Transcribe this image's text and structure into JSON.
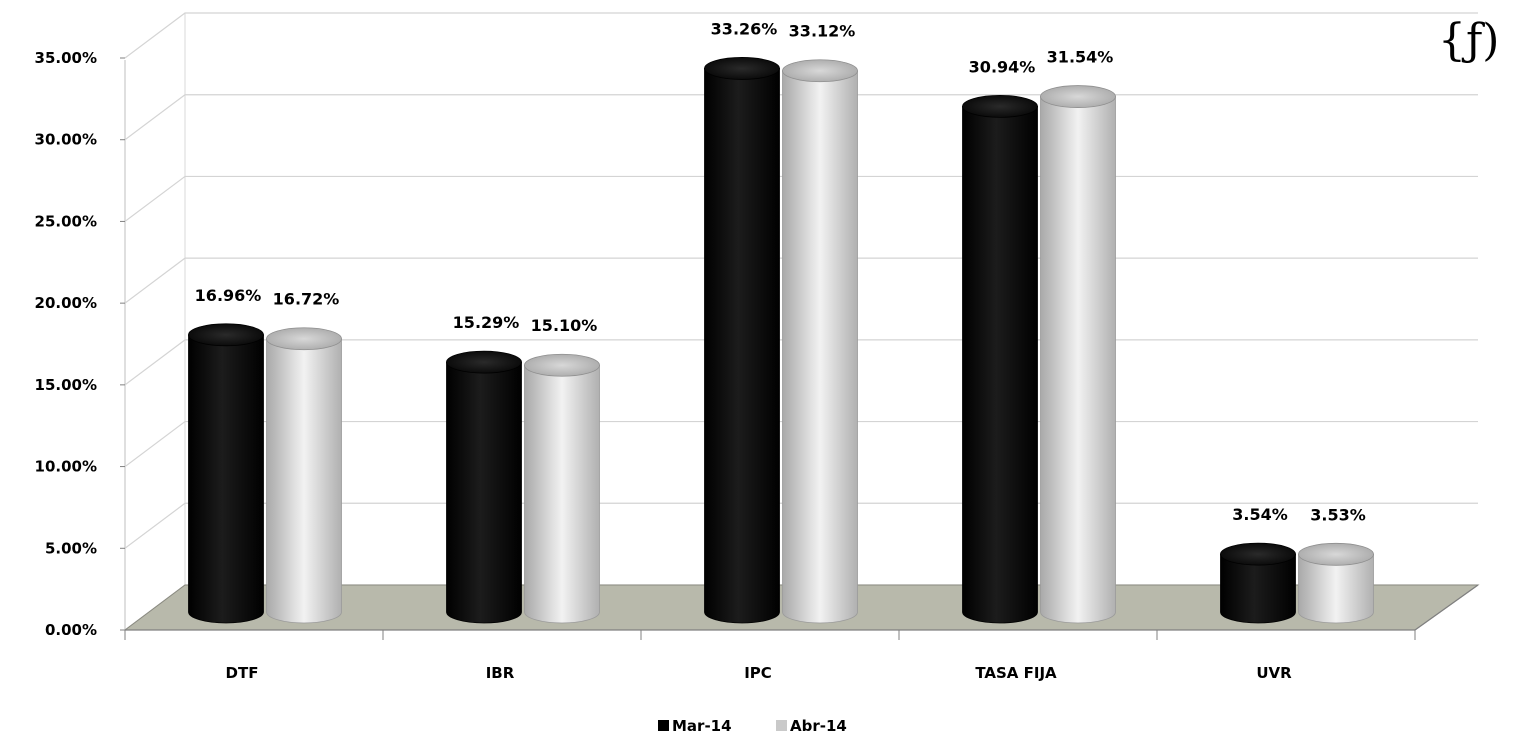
{
  "chart_data": {
    "type": "bar",
    "categories": [
      "DTF",
      "IBR",
      "IPC",
      "TASA FIJA",
      "UVR"
    ],
    "series": [
      {
        "name": "Mar-14",
        "values": [
          16.96,
          15.29,
          33.26,
          30.94,
          3.54
        ],
        "color": "#0a0a0a"
      },
      {
        "name": "Abr-14",
        "values": [
          16.72,
          15.1,
          33.12,
          31.54,
          3.53
        ],
        "color": "#c9c9c9"
      }
    ],
    "data_labels": [
      [
        "16.96%",
        "15.29%",
        "33.26%",
        "30.94%",
        "3.54%"
      ],
      [
        "16.72%",
        "15.10%",
        "33.12%",
        "31.54%",
        "3.53%"
      ]
    ],
    "y_ticks": [
      "0.00%",
      "5.00%",
      "10.00%",
      "15.00%",
      "20.00%",
      "25.00%",
      "30.00%",
      "35.00%"
    ],
    "ylim": [
      0,
      35
    ],
    "grid": true,
    "style": "3d-cylinder",
    "legend_position": "bottom",
    "floor_color": "#b8b9ab"
  },
  "logo": {
    "text": "{ƒ)"
  }
}
